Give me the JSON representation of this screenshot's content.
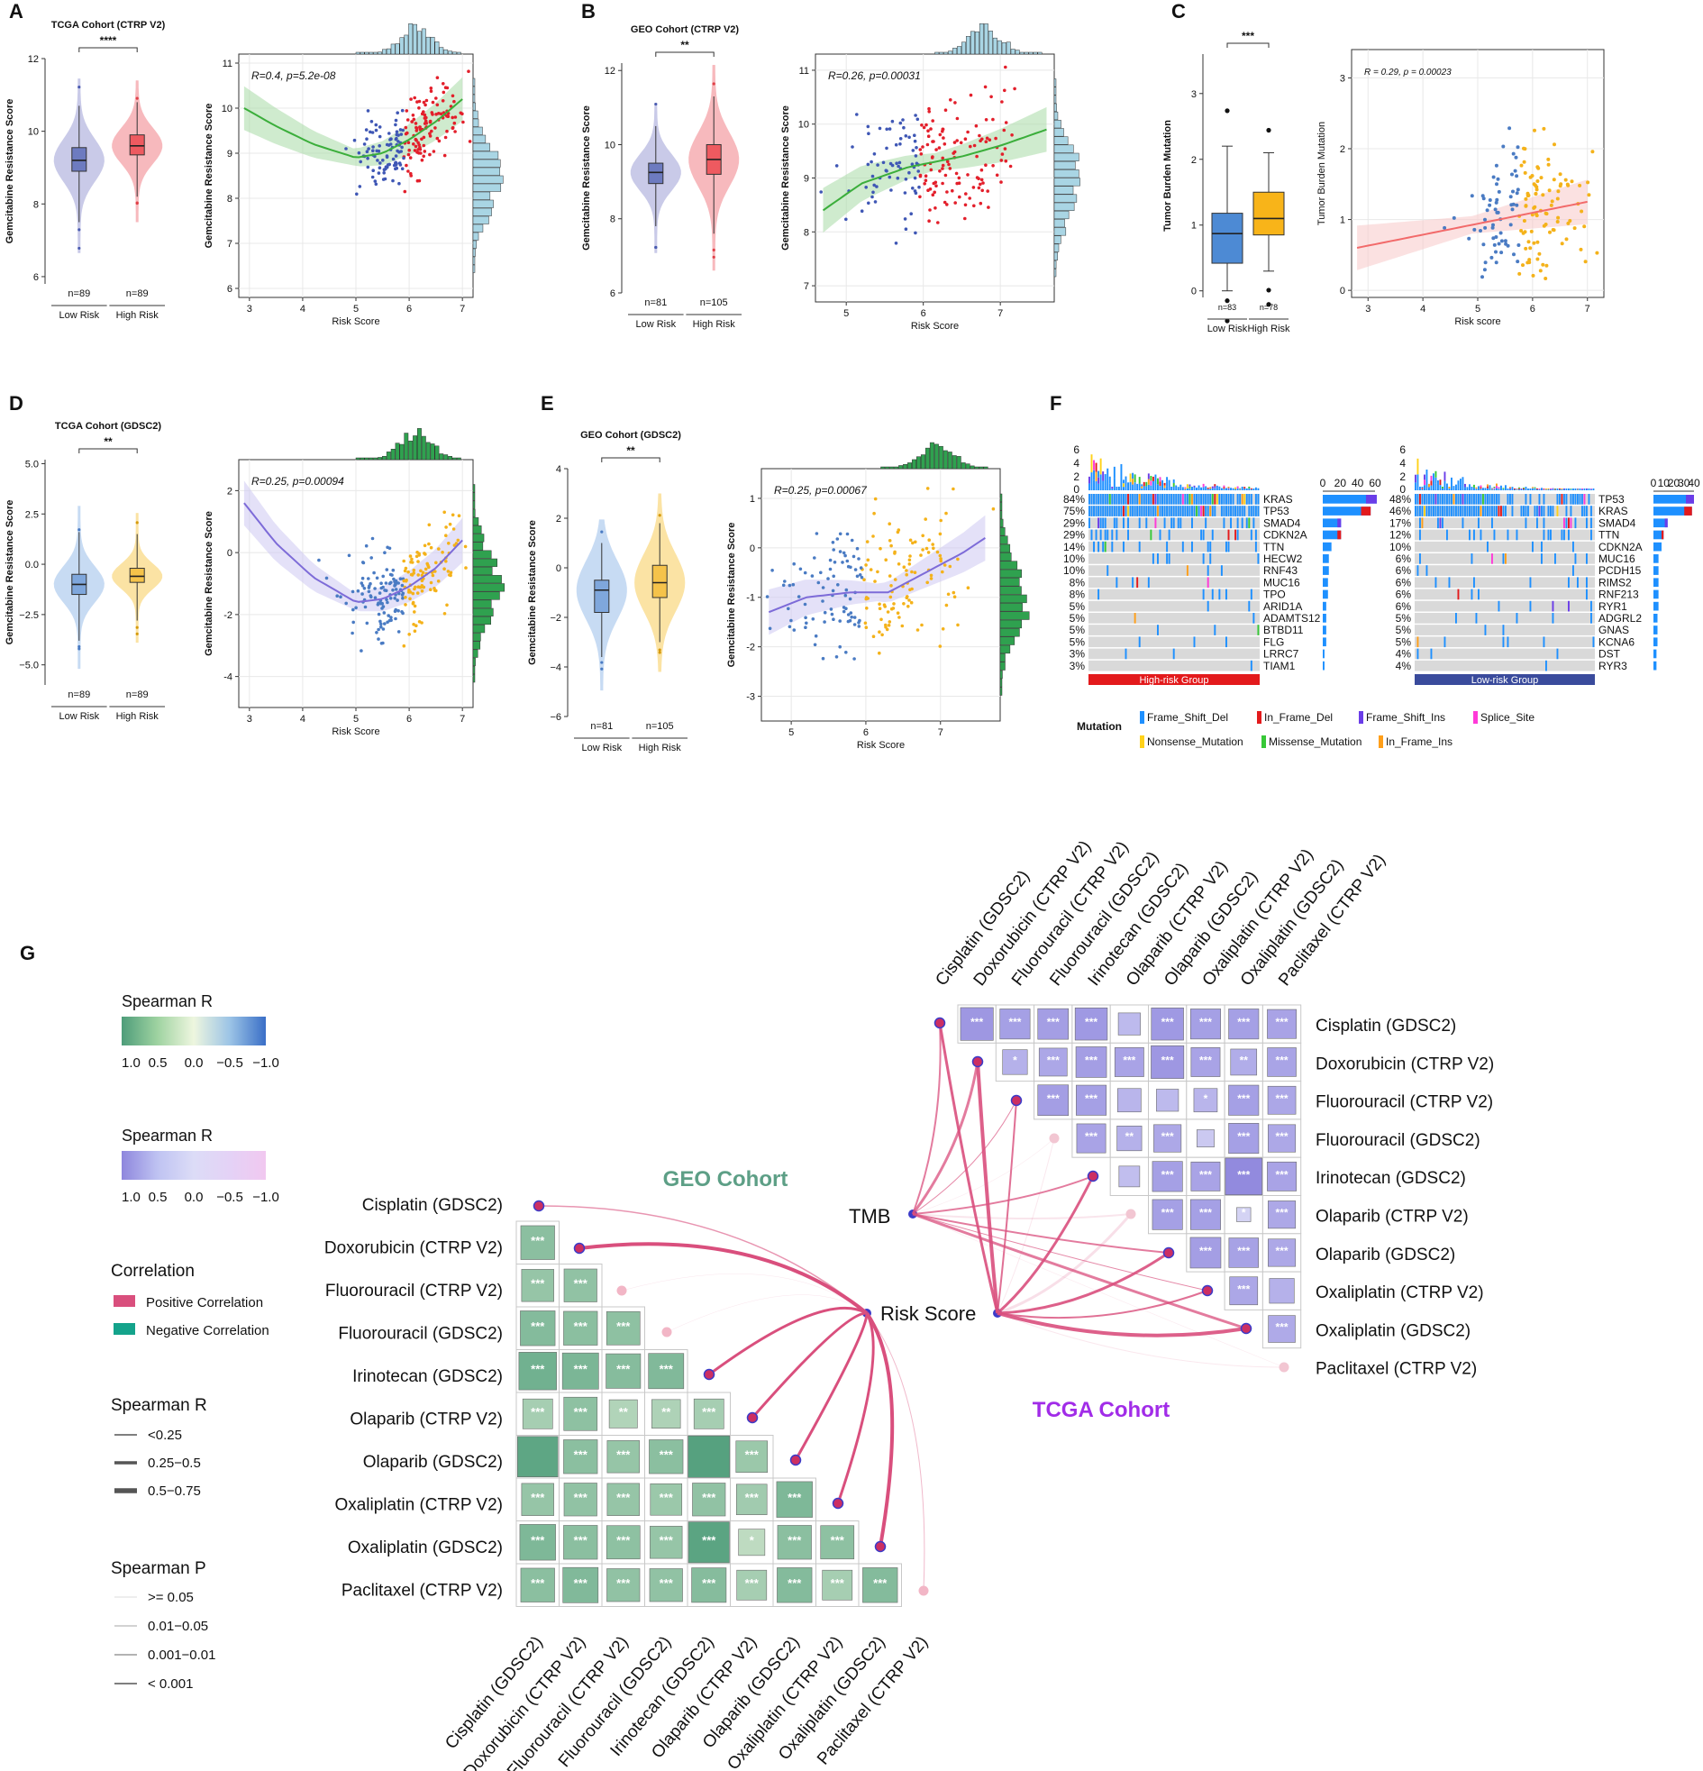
{
  "colors": {
    "green_dark": "#4e9d7a",
    "green_light": "#d8efd9",
    "purple_dark": "#8e86dd",
    "purple_light": "#f1c8f0",
    "pos_line": "#d94f7d",
    "neg_line": "#14a38b",
    "tcga_label": "#a12ce8",
    "geo_label": "#5d9f86",
    "blue_pt": "#4a7bc3",
    "red_pt": "#e8333b",
    "orange_pt": "#f4b21a",
    "teal_hist": "#a9d5e4",
    "green_hist": "#2fa14f"
  },
  "panel_letters": [
    "A",
    "B",
    "C",
    "D",
    "E",
    "F",
    "G"
  ],
  "chart_data": [
    {
      "id": "A1",
      "type": "violin",
      "title": "TCGA Cohort (CTRP V2)",
      "ylabel": "Gemcitabine Resistance Score",
      "ylim": [
        5.8,
        12
      ],
      "yticks": [
        "6",
        "8",
        "10",
        "12"
      ],
      "groups": [
        {
          "name": "Low Risk",
          "n": "n=89",
          "q1": 8.9,
          "median": 9.2,
          "q3": 9.55,
          "lo": 7.5,
          "hi": 10.7
        },
        {
          "name": "High Risk",
          "n": "n=89",
          "q1": 9.35,
          "median": 9.6,
          "q3": 9.9,
          "lo": 8.2,
          "hi": 10.8
        }
      ],
      "signif": "****"
    },
    {
      "id": "A2",
      "type": "scatter",
      "ylabel": "Gemcitabine Resistance Score",
      "xlabel": "Risk Score",
      "xlim": [
        2.8,
        7.2
      ],
      "ylim": [
        5.8,
        11.2
      ],
      "xticks": [
        "3",
        "4",
        "5",
        "6",
        "7"
      ],
      "yticks": [
        "6",
        "7",
        "8",
        "9",
        "10",
        "11"
      ],
      "annotation": "R=0.4, p=5.2e-08",
      "fit": [
        [
          2.9,
          10.0
        ],
        [
          3.5,
          9.6
        ],
        [
          4.2,
          9.2
        ],
        [
          5.0,
          8.9
        ],
        [
          5.5,
          9.0
        ],
        [
          6.0,
          9.3
        ],
        [
          6.5,
          9.7
        ],
        [
          7.0,
          10.2
        ]
      ]
    },
    {
      "id": "B1",
      "type": "violin",
      "title": "GEO Cohort (CTRP V2)",
      "ylabel": "Gemcitabine Resistance Score",
      "ylim": [
        6,
        12.2
      ],
      "yticks": [
        "6",
        "8",
        "10",
        "12"
      ],
      "groups": [
        {
          "name": "Low Risk",
          "n": "n=81",
          "q1": 8.95,
          "median": 9.25,
          "q3": 9.5,
          "lo": 7.8,
          "hi": 10.5
        },
        {
          "name": "High Risk",
          "n": "n=105",
          "q1": 9.2,
          "median": 9.6,
          "q3": 10.0,
          "lo": 7.6,
          "hi": 11.3
        }
      ],
      "signif": "**"
    },
    {
      "id": "B2",
      "type": "scatter",
      "ylabel": "Gemcitabine Resistance Score",
      "xlabel": "Risk Score",
      "xlim": [
        4.6,
        7.7
      ],
      "ylim": [
        6.7,
        11.3
      ],
      "xticks": [
        "5",
        "6",
        "7"
      ],
      "yticks": [
        "7",
        "8",
        "9",
        "10",
        "11"
      ],
      "annotation": "R=0.26, p=0.00031",
      "fit": [
        [
          4.7,
          8.4
        ],
        [
          5.2,
          8.9
        ],
        [
          5.8,
          9.2
        ],
        [
          6.5,
          9.4
        ],
        [
          7.0,
          9.6
        ],
        [
          7.6,
          9.9
        ]
      ]
    },
    {
      "id": "C1",
      "type": "box",
      "ylabel": "Tumor Burden Mutation",
      "ylim": [
        -0.1,
        3.6
      ],
      "yticks": [
        "0",
        "1",
        "2",
        "3"
      ],
      "groups": [
        {
          "name": "Low Risk",
          "n": "n=83",
          "q1": 0.42,
          "median": 0.87,
          "q3": 1.18,
          "lo": 0,
          "hi": 2.2
        },
        {
          "name": "High Risk",
          "n": "n=78",
          "q1": 0.85,
          "median": 1.1,
          "q3": 1.5,
          "lo": 0.3,
          "hi": 2.1
        }
      ],
      "signif": "***"
    },
    {
      "id": "C2",
      "type": "scatter",
      "ylabel": "Tumor Burden Mutation",
      "xlabel": "Risk score",
      "xlim": [
        2.7,
        7.3
      ],
      "ylim": [
        -0.1,
        3.4
      ],
      "xticks": [
        "3",
        "4",
        "5",
        "6",
        "7"
      ],
      "yticks": [
        "0",
        "1",
        "2",
        "3"
      ],
      "annotation": "R = 0.29, p = 0.00023",
      "fit": [
        [
          2.8,
          0.6
        ],
        [
          7.0,
          1.25
        ]
      ]
    },
    {
      "id": "D1",
      "type": "violin",
      "title": "TCGA Cohort (GDSC2)",
      "ylabel": "Gemcitabine Resistance Score",
      "ylim": [
        -6,
        5.2
      ],
      "yticks": [
        "−5.0",
        "−2.5",
        "0.0",
        "2.5",
        "5.0"
      ],
      "ytick_vals": [
        -5,
        -2.5,
        0,
        2.5,
        5
      ],
      "groups": [
        {
          "name": "Low Risk",
          "n": "n=89",
          "q1": -1.5,
          "median": -1.0,
          "q3": -0.5,
          "lo": -3.8,
          "hi": 1.6
        },
        {
          "name": "High Risk",
          "n": "n=89",
          "q1": -0.9,
          "median": -0.6,
          "q3": -0.2,
          "lo": -2.8,
          "hi": 1.5
        }
      ],
      "signif": "**"
    },
    {
      "id": "D2",
      "type": "scatter",
      "ylabel": "Gemcitabine Resistance Score",
      "xlabel": "Risk Score",
      "xlim": [
        2.8,
        7.2
      ],
      "ylim": [
        -5,
        3
      ],
      "xticks": [
        "3",
        "4",
        "5",
        "6",
        "7"
      ],
      "yticks": [
        "-4",
        "-2",
        "0",
        "2"
      ],
      "annotation": "R=0.25, p=0.00094",
      "fit": [
        [
          2.9,
          1.6
        ],
        [
          3.5,
          0.3
        ],
        [
          4.2,
          -0.8
        ],
        [
          5.0,
          -1.6
        ],
        [
          5.5,
          -1.5
        ],
        [
          6.0,
          -1.1
        ],
        [
          6.5,
          -0.5
        ],
        [
          7.0,
          0.4
        ]
      ]
    },
    {
      "id": "E1",
      "type": "violin",
      "title": "GEO Cohort (GDSC2)",
      "ylabel": "Gemcitabine Resistance Score",
      "ylim": [
        -6,
        4
      ],
      "yticks": [
        "−6",
        "−4",
        "−2",
        "0",
        "2",
        "4"
      ],
      "ytick_vals": [
        -6,
        -4,
        -2,
        0,
        2,
        4
      ],
      "groups": [
        {
          "name": "Low Risk",
          "n": "n=81",
          "q1": -1.8,
          "median": -0.9,
          "q3": -0.5,
          "lo": -3.6,
          "hi": 1.0
        },
        {
          "name": "High Risk",
          "n": "n=105",
          "q1": -1.2,
          "median": -0.6,
          "q3": 0.1,
          "lo": -3.0,
          "hi": 1.8
        }
      ],
      "signif": "**"
    },
    {
      "id": "E2",
      "type": "scatter",
      "ylabel": "Gemcitabine Resistance Score",
      "xlabel": "Risk Score",
      "xlim": [
        4.6,
        7.8
      ],
      "ylim": [
        -3.5,
        1.6
      ],
      "xticks": [
        "5",
        "6",
        "7"
      ],
      "yticks": [
        "-3",
        "-2",
        "-1",
        "0",
        "1"
      ],
      "annotation": "R=0.25, p=0.00067",
      "fit": [
        [
          4.7,
          -1.3
        ],
        [
          5.2,
          -1.0
        ],
        [
          5.8,
          -0.9
        ],
        [
          6.3,
          -0.9
        ],
        [
          6.8,
          -0.5
        ],
        [
          7.3,
          -0.1
        ],
        [
          7.6,
          0.2
        ]
      ]
    },
    {
      "id": "F",
      "type": "oncoplot",
      "top_ticks": [
        "6",
        "4",
        "2",
        "0"
      ],
      "high": {
        "group": "High-risk Group",
        "genes": [
          "KRAS",
          "TP53",
          "SMAD4",
          "CDKN2A",
          "TTN",
          "HECW2",
          "RNF43",
          "MUC16",
          "TPO",
          "ARID1A",
          "ADAMTS12",
          "BTBD11",
          "FLG",
          "LRRC7",
          "TIAM1"
        ],
        "pcts": [
          "84%",
          "75%",
          "29%",
          "29%",
          "14%",
          "10%",
          "10%",
          "8%",
          "8%",
          "5%",
          "5%",
          "5%",
          "5%",
          "3%",
          "3%"
        ],
        "bar_axis": [
          "0",
          "20",
          "40",
          "60"
        ],
        "counts": [
          62,
          55,
          21,
          21,
          10,
          7,
          7,
          6,
          6,
          4,
          4,
          4,
          4,
          2,
          2
        ]
      },
      "low": {
        "group": "Low-risk Group",
        "genes": [
          "TP53",
          "KRAS",
          "SMAD4",
          "TTN",
          "CDKN2A",
          "MUC16",
          "PCDH15",
          "RIMS2",
          "RNF213",
          "RYR1",
          "ADGRL2",
          "GNAS",
          "KCNA6",
          "DST",
          "RYR3"
        ],
        "pcts": [
          "48%",
          "46%",
          "17%",
          "12%",
          "10%",
          "6%",
          "6%",
          "6%",
          "6%",
          "6%",
          "5%",
          "5%",
          "5%",
          "4%",
          "4%"
        ],
        "bar_axis": [
          "0",
          "10",
          "20",
          "30",
          "40"
        ],
        "counts": [
          40,
          38,
          14,
          10,
          8,
          5,
          5,
          5,
          5,
          5,
          4,
          4,
          4,
          3,
          3
        ]
      },
      "legend_title": "Mutation",
      "legend": [
        {
          "label": "Frame_Shift_Del",
          "color": "#1e90ff"
        },
        {
          "label": "In_Frame_Del",
          "color": "#e31a1c"
        },
        {
          "label": "Frame_Shift_Ins",
          "color": "#6a3de8"
        },
        {
          "label": "Splice_Site",
          "color": "#ff3ad8"
        },
        {
          "label": "Nonsense_Mutation",
          "color": "#ffd21a"
        },
        {
          "label": "Missense_Mutation",
          "color": "#37c837"
        },
        {
          "label": "In_Frame_Ins",
          "color": "#ff9f1a"
        }
      ]
    },
    {
      "id": "G",
      "type": "heatmap",
      "drugs": [
        "Cisplatin (GDSC2)",
        "Doxorubicin (CTRP V2)",
        "Fluorouracil (CTRP V2)",
        "Fluorouracil (GDSC2)",
        "Irinotecan (GDSC2)",
        "Olaparib (CTRP V2)",
        "Olaparib (GDSC2)",
        "Oxaliplatin (CTRP V2)",
        "Oxaliplatin (GDSC2)",
        "Paclitaxel (CTRP V2)"
      ],
      "geo_label": "GEO Cohort",
      "tcga_label": "TCGA Cohort",
      "node_risk": "Risk Score",
      "node_tmb": "TMB",
      "geo_stars": [
        [
          "***"
        ],
        [
          "***",
          "***"
        ],
        [
          "***",
          "***",
          "***"
        ],
        [
          "***",
          "***",
          "***",
          "***"
        ],
        [
          "***",
          "***",
          "**",
          "**",
          "***"
        ],
        [
          "",
          "***",
          "***",
          "***",
          "",
          "***"
        ],
        [
          "***",
          "***",
          "***",
          "***",
          "***",
          "***",
          "***"
        ],
        [
          "***",
          "***",
          "***",
          "***",
          "***",
          "*",
          "***",
          "***"
        ],
        [
          "***",
          "***",
          "***",
          "***",
          "***",
          "***",
          "***",
          "***",
          "***"
        ]
      ],
      "geo_r": [
        [
          0.62
        ],
        [
          0.55,
          0.58
        ],
        [
          0.66,
          0.62,
          0.6
        ],
        [
          0.78,
          0.72,
          0.65,
          0.68
        ],
        [
          0.45,
          0.6,
          0.38,
          0.4,
          0.45
        ],
        [
          0.9,
          0.62,
          0.55,
          0.62,
          0.95,
          0.52
        ],
        [
          0.55,
          0.58,
          0.55,
          0.52,
          0.58,
          0.48,
          0.7
        ],
        [
          0.7,
          0.62,
          0.6,
          0.55,
          0.92,
          0.3,
          0.62,
          0.6
        ],
        [
          0.62,
          0.68,
          0.58,
          0.58,
          0.65,
          0.45,
          0.66,
          0.45,
          0.66
        ]
      ],
      "tcga_stars": [
        [
          "***",
          "***",
          "***",
          "***",
          "",
          "***",
          "***",
          "***",
          "***"
        ],
        [
          "*",
          "***",
          "***",
          "***",
          "***",
          "***",
          "**",
          "***"
        ],
        [
          "***",
          "***",
          "",
          "",
          "*",
          "***",
          "***"
        ],
        [
          "***",
          "**",
          "***",
          "",
          "***",
          "***"
        ],
        [
          "",
          "***",
          "***",
          "***",
          "***"
        ],
        [
          "***",
          "***",
          "*",
          "***"
        ],
        [
          "***",
          "***",
          "***"
        ],
        [
          "***",
          ""
        ],
        [
          "***"
        ]
      ],
      "tcga_r": [
        [
          0.8,
          0.7,
          0.72,
          0.78,
          0.4,
          0.78,
          0.7,
          0.7,
          0.66
        ],
        [
          0.5,
          0.62,
          0.72,
          0.66,
          0.8,
          0.66,
          0.55,
          0.65
        ],
        [
          0.72,
          0.7,
          0.45,
          0.4,
          0.45,
          0.7,
          0.62
        ],
        [
          0.66,
          0.5,
          0.6,
          0.22,
          0.7,
          0.6
        ],
        [
          0.35,
          0.7,
          0.66,
          0.95,
          0.66
        ],
        [
          0.7,
          0.7,
          0.1,
          0.6
        ],
        [
          0.72,
          0.68,
          0.6
        ],
        [
          0.62,
          0.5
        ],
        [
          0.58
        ]
      ],
      "legend_spearman_title": "Spearman R",
      "legend_spearman_ticks": [
        "1.0",
        "0.5",
        "0.0",
        "−0.5",
        "−1.0"
      ],
      "legend_correlation_title": "Correlation",
      "legend_correlation": [
        "Positive Correlation",
        "Negative Correlation"
      ],
      "legend_width_title": "Spearman R",
      "legend_width": [
        "<0.25",
        "0.25−0.5",
        "0.5−0.75"
      ],
      "legend_p_title": "Spearman P",
      "legend_p": [
        ">= 0.05",
        "0.01−0.05",
        "0.001−0.01",
        "< 0.001"
      ]
    }
  ]
}
